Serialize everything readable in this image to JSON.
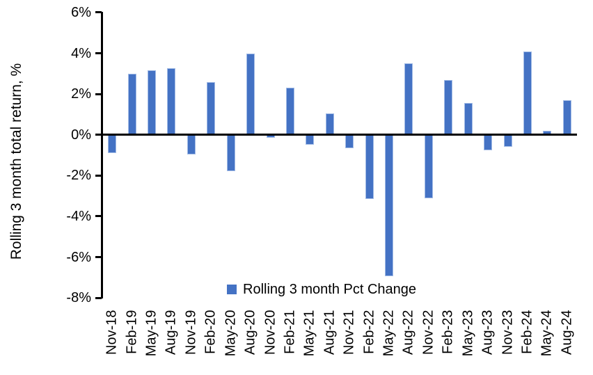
{
  "chart_data": {
    "type": "bar",
    "title": "",
    "xlabel": "",
    "ylabel": "Rolling 3 month total return, %",
    "ylim": [
      -8,
      6
    ],
    "ytick_step": 2,
    "yticks": [
      {
        "value": 6,
        "label": "6%"
      },
      {
        "value": 4,
        "label": "4%"
      },
      {
        "value": 2,
        "label": "2%"
      },
      {
        "value": 0,
        "label": "0%"
      },
      {
        "value": -2,
        "label": "-2%"
      },
      {
        "value": -4,
        "label": "-4%"
      },
      {
        "value": -6,
        "label": "-6%"
      },
      {
        "value": -8,
        "label": "-8%"
      }
    ],
    "categories": [
      "Nov-18",
      "Feb-19",
      "May-19",
      "Aug-19",
      "Nov-19",
      "Feb-20",
      "May-20",
      "Aug-20",
      "Nov-20",
      "Feb-21",
      "May-21",
      "Aug-21",
      "Nov-21",
      "Feb-22",
      "May-22",
      "Aug-22",
      "Nov-22",
      "Feb-23",
      "May-23",
      "Aug-23",
      "Nov-23",
      "Feb-24",
      "May-24",
      "Aug-24"
    ],
    "series": [
      {
        "name": "Rolling 3 month Pct Change",
        "values": [
          -0.9,
          3.0,
          3.15,
          3.25,
          -0.95,
          2.6,
          -1.8,
          4.0,
          -0.15,
          2.3,
          -0.5,
          1.05,
          -0.65,
          -3.15,
          -6.95,
          3.5,
          -3.1,
          2.7,
          1.55,
          -0.75,
          -0.6,
          4.1,
          0.2,
          1.7
        ]
      }
    ],
    "legend_position": "bottom-center",
    "grid": false,
    "bar_color": "#4472C4",
    "bar_border_color": "#A3BCE6",
    "axis_color": "#000000",
    "background_color": "#FFFFFF"
  }
}
